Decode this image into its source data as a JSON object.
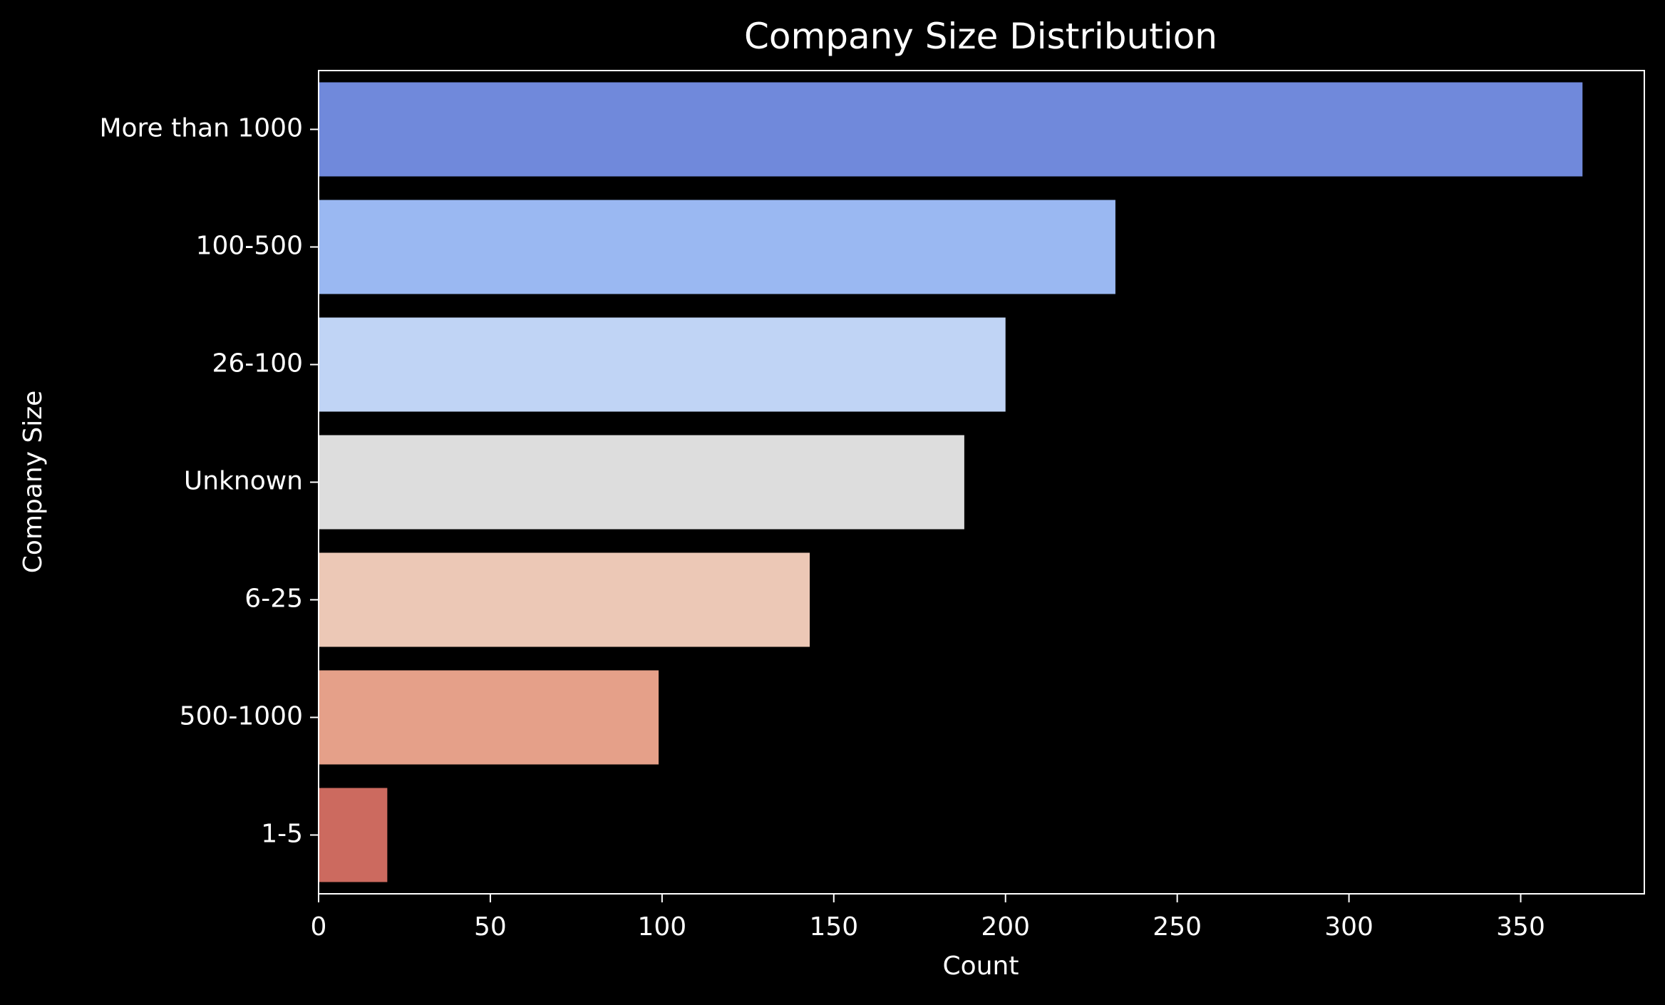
{
  "chart_data": {
    "type": "bar",
    "orientation": "horizontal",
    "title": "Company Size Distribution",
    "xlabel": "Count",
    "ylabel": "Company Size",
    "categories": [
      "More than 1000",
      "100-500",
      "26-100",
      "Unknown",
      "6-25",
      "500-1000",
      "1-5"
    ],
    "values": [
      368,
      232,
      200,
      188,
      143,
      99,
      20
    ],
    "colors": [
      "#7089db",
      "#9ab8f2",
      "#c0d4f5",
      "#dddddd",
      "#ecc8b6",
      "#e5a089",
      "#cc6a5f"
    ],
    "xlim": [
      0,
      386
    ],
    "xticks": [
      0,
      50,
      100,
      150,
      200,
      250,
      300,
      350
    ],
    "grid": false,
    "background": "#000000",
    "foreground": "#ffffff"
  }
}
